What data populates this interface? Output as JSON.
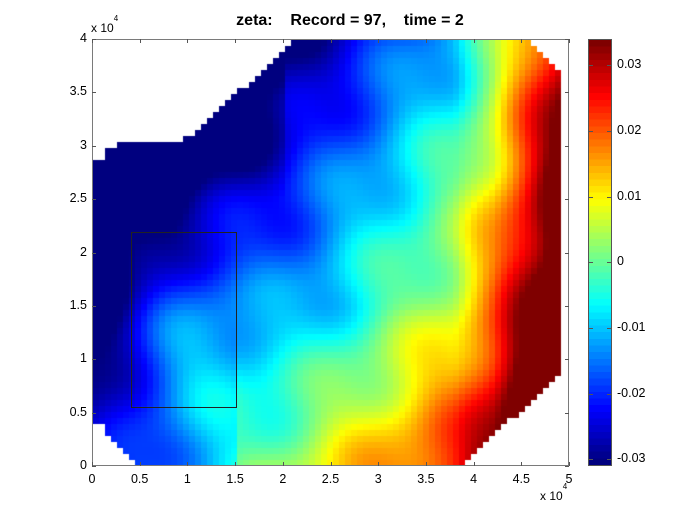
{
  "title": "zeta:    Record = 97,    time = 2",
  "chart_data": {
    "type": "heatmap",
    "title": "zeta:    Record = 97,    time = 2",
    "variable": "zeta",
    "record": 97,
    "time": 2,
    "xlabel": "",
    "ylabel": "",
    "x_multiplier": "x 10^4",
    "y_multiplier": "x 10^4",
    "xlim": [
      0,
      50000
    ],
    "ylim": [
      0,
      40000
    ],
    "x_ticks": [
      "0",
      "0.5",
      "1",
      "1.5",
      "2",
      "2.5",
      "3",
      "3.5",
      "4",
      "4.5",
      "5"
    ],
    "y_ticks": [
      "0",
      "0.5",
      "1",
      "1.5",
      "2",
      "2.5",
      "3",
      "3.5",
      "4"
    ],
    "colormap": "jet",
    "clim": [
      -0.031,
      0.034
    ],
    "colorbar_ticks": [
      "0.03",
      "0.02",
      "0.01",
      "0",
      "-0.01",
      "-0.02",
      "-0.03"
    ],
    "grid": false,
    "annotation_rectangle": {
      "x0": 4000,
      "x1": 15000,
      "y0": 5500,
      "y1": 22000
    },
    "description": "Sea surface elevation field on irregular domain; low values (deep blue, ~-0.03) in northwest, rising to cyan/green in the center-left rectangle region, yellow/orange in the south, and high values (dark red, ~0.03) along the eastern boundary."
  },
  "colorbar": {
    "labels": [
      "0.03",
      "0.02",
      "0.01",
      "0",
      "-0.01",
      "-0.02",
      "-0.03"
    ]
  },
  "axes": {
    "x_labels": [
      "0",
      "0.5",
      "1",
      "1.5",
      "2",
      "2.5",
      "3",
      "3.5",
      "4",
      "4.5",
      "5"
    ],
    "y_labels": [
      "0",
      "0.5",
      "1",
      "1.5",
      "2",
      "2.5",
      "3",
      "3.5",
      "4"
    ],
    "x_exp": "x 10",
    "y_exp": "x 10",
    "exp_power": "4"
  }
}
